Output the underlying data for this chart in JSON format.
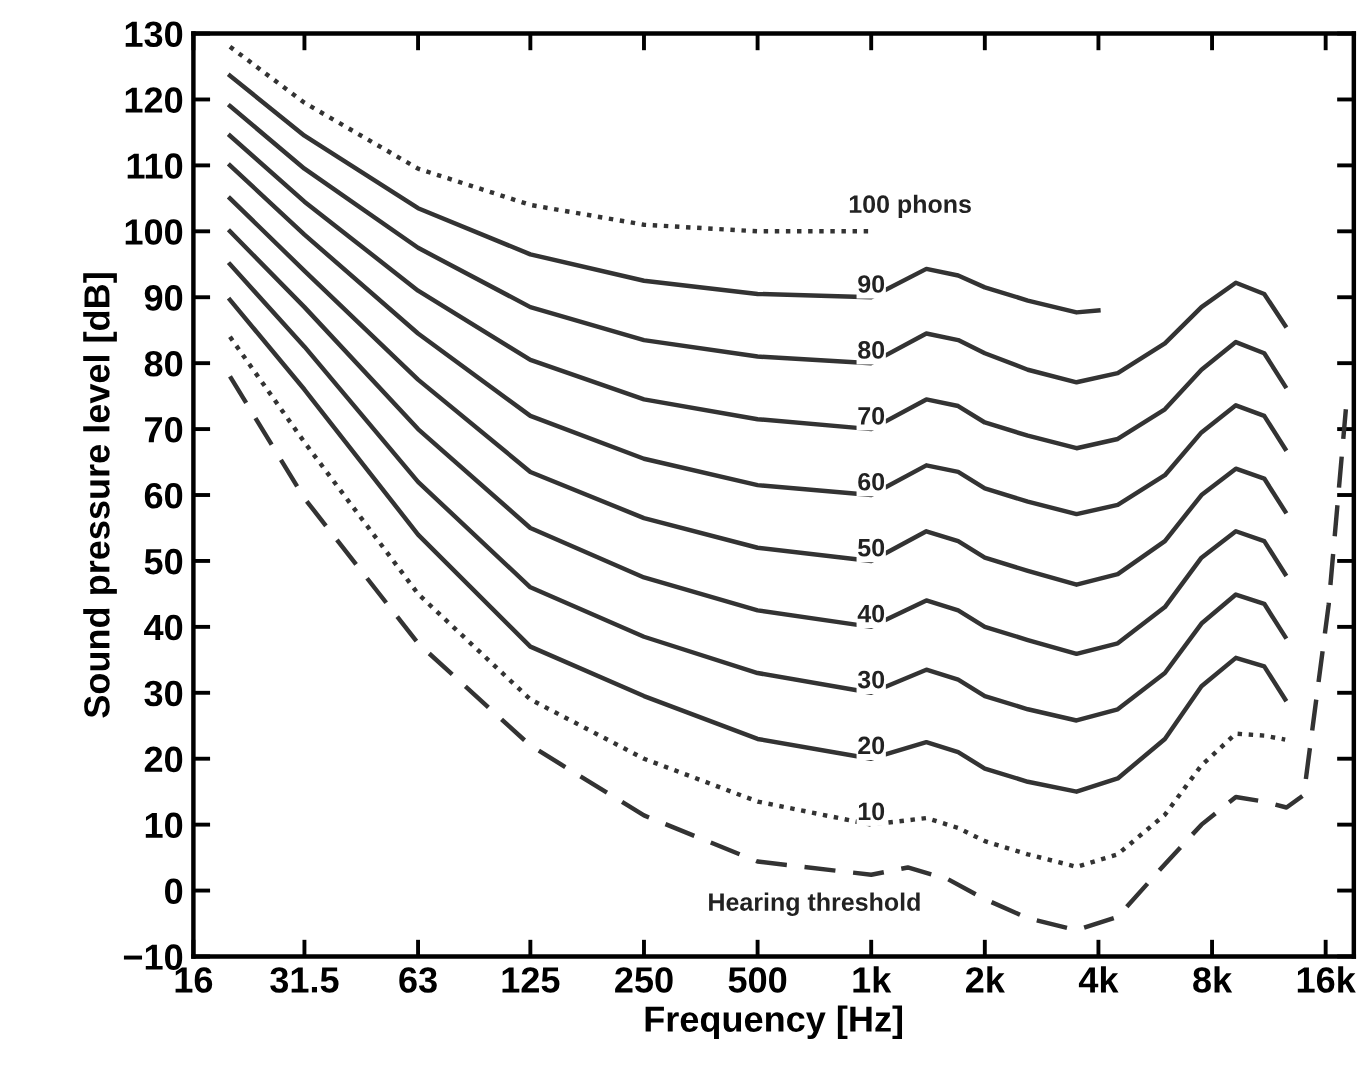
{
  "chart_data": {
    "type": "line",
    "log": "x",
    "xlabel": "Frequency [Hz]",
    "ylabel": "Sound pressure level [dB]",
    "xlim": [
      16,
      19000
    ],
    "ylim": [
      -10,
      130
    ],
    "xticks": [
      16,
      31.5,
      63,
      125,
      250,
      500,
      {
        "value": 1000,
        "label": "1k"
      },
      {
        "value": 2000,
        "label": "2k"
      },
      {
        "value": 4000,
        "label": "4k"
      },
      {
        "value": 8000,
        "label": "8k"
      },
      {
        "value": 16000,
        "label": "16k"
      }
    ],
    "yticks": [
      {
        "value": -10,
        "label": "−10"
      },
      0,
      10,
      20,
      30,
      40,
      50,
      60,
      70,
      80,
      90,
      100,
      110,
      120,
      130
    ],
    "series": [
      {
        "name": "100 phons",
        "color": "#333333",
        "line_style": "dotted",
        "x": [
          20,
          31.5,
          63,
          125,
          250,
          500,
          1000
        ],
        "values": [
          128,
          119.5,
          109.5,
          104,
          101,
          100,
          100
        ]
      },
      {
        "name": "90",
        "color": "#333333",
        "line_style": "solid",
        "x": [
          20,
          31.5,
          63,
          125,
          250,
          500,
          1000,
          1400,
          1700,
          2000,
          2600,
          3500,
          4000
        ],
        "values": [
          123.6,
          114.5,
          103.5,
          96.5,
          92.5,
          90.5,
          90,
          94.3,
          93.3,
          91.5,
          89.5,
          87.7,
          88
        ]
      },
      {
        "name": "80",
        "color": "#333333",
        "line_style": "solid",
        "x": [
          20,
          31.5,
          63,
          125,
          250,
          500,
          1000,
          1400,
          1700,
          2000,
          2600,
          3500,
          4500,
          6000,
          7500,
          9250,
          11000,
          12500
        ],
        "values": [
          119,
          109.5,
          97.5,
          88.5,
          83.5,
          81,
          80,
          84.5,
          83.5,
          81.5,
          79,
          77.1,
          78.5,
          83,
          88.5,
          92.2,
          90.5,
          85.7
        ]
      },
      {
        "name": "70",
        "color": "#333333",
        "line_style": "solid",
        "x": [
          20,
          31.5,
          63,
          125,
          250,
          500,
          1000,
          1400,
          1700,
          2000,
          2600,
          3500,
          4500,
          6000,
          7500,
          9250,
          11000,
          12500
        ],
        "values": [
          114.5,
          104.5,
          91,
          80.5,
          74.5,
          71.5,
          70,
          74.5,
          73.5,
          71,
          69,
          67.1,
          68.5,
          73,
          79,
          83.2,
          81.5,
          76.5
        ]
      },
      {
        "name": "60",
        "color": "#333333",
        "line_style": "solid",
        "x": [
          20,
          31.5,
          63,
          125,
          250,
          500,
          1000,
          1400,
          1700,
          2000,
          2600,
          3500,
          4500,
          6000,
          7500,
          9250,
          11000,
          12500
        ],
        "values": [
          110,
          99.5,
          84.5,
          72,
          65.5,
          61.5,
          60,
          64.5,
          63.5,
          61,
          59,
          57.1,
          58.5,
          63,
          69.5,
          73.6,
          72,
          67
        ]
      },
      {
        "name": "50",
        "color": "#333333",
        "line_style": "solid",
        "x": [
          20,
          31.5,
          63,
          125,
          250,
          500,
          1000,
          1400,
          1700,
          2000,
          2600,
          3500,
          4500,
          6000,
          7500,
          9250,
          11000,
          12500
        ],
        "values": [
          105,
          94,
          77.5,
          63.5,
          56.5,
          52,
          50,
          54.5,
          53,
          50.5,
          48.5,
          46.4,
          48,
          53,
          60,
          64,
          62.5,
          57.5
        ]
      },
      {
        "name": "40",
        "color": "#333333",
        "line_style": "solid",
        "x": [
          20,
          31.5,
          63,
          125,
          250,
          500,
          1000,
          1400,
          1700,
          2000,
          2600,
          3500,
          4500,
          6000,
          7500,
          9250,
          11000,
          12500
        ],
        "values": [
          100,
          88.5,
          70,
          55,
          47.5,
          42.5,
          40,
          44,
          42.5,
          40,
          38,
          35.9,
          37.5,
          43,
          50.5,
          54.5,
          53,
          48
        ]
      },
      {
        "name": "30",
        "color": "#333333",
        "line_style": "solid",
        "x": [
          20,
          31.5,
          63,
          125,
          250,
          500,
          1000,
          1400,
          1700,
          2000,
          2600,
          3500,
          4500,
          6000,
          7500,
          9250,
          11000,
          12500
        ],
        "values": [
          95,
          82.5,
          62,
          46,
          38.5,
          33,
          30,
          33.5,
          32,
          29.5,
          27.5,
          25.8,
          27.5,
          33,
          40.5,
          44.9,
          43.5,
          38.5
        ]
      },
      {
        "name": "20",
        "color": "#333333",
        "line_style": "solid",
        "x": [
          20,
          31.5,
          63,
          125,
          250,
          500,
          1000,
          1400,
          1700,
          2000,
          2600,
          3500,
          4500,
          6000,
          7500,
          9250,
          11000,
          12500
        ],
        "values": [
          89.6,
          76,
          54,
          37,
          29.5,
          23,
          20,
          22.5,
          21,
          18.5,
          16.5,
          15,
          17,
          23,
          31,
          35.3,
          34,
          29
        ]
      },
      {
        "name": "10",
        "color": "#333333",
        "line_style": "dotted",
        "x": [
          20,
          31.5,
          63,
          125,
          250,
          500,
          1000,
          1400,
          1700,
          2000,
          2600,
          3500,
          4500,
          6000,
          7500,
          9250,
          11000,
          12500
        ],
        "values": [
          84,
          68,
          45,
          29,
          20,
          13.5,
          10,
          11,
          9.5,
          7.5,
          5.5,
          3.6,
          5.5,
          11.5,
          19,
          23.8,
          23.5,
          22.9
        ]
      },
      {
        "name": "Hearing threshold",
        "color": "#333333",
        "line_style": "dashed",
        "x": [
          20,
          31.5,
          63,
          125,
          250,
          500,
          1000,
          1250,
          1600,
          2000,
          2600,
          3500,
          4500,
          6000,
          7500,
          9250,
          11000,
          12600,
          14000,
          16300,
          18100
        ],
        "values": [
          78,
          59.5,
          37.5,
          22,
          11.4,
          4.4,
          2.4,
          3.5,
          1.7,
          -1.3,
          -4.2,
          -6,
          -4,
          4,
          10,
          14.2,
          13.5,
          12.6,
          14.5,
          43.4,
          73
        ]
      }
    ]
  }
}
